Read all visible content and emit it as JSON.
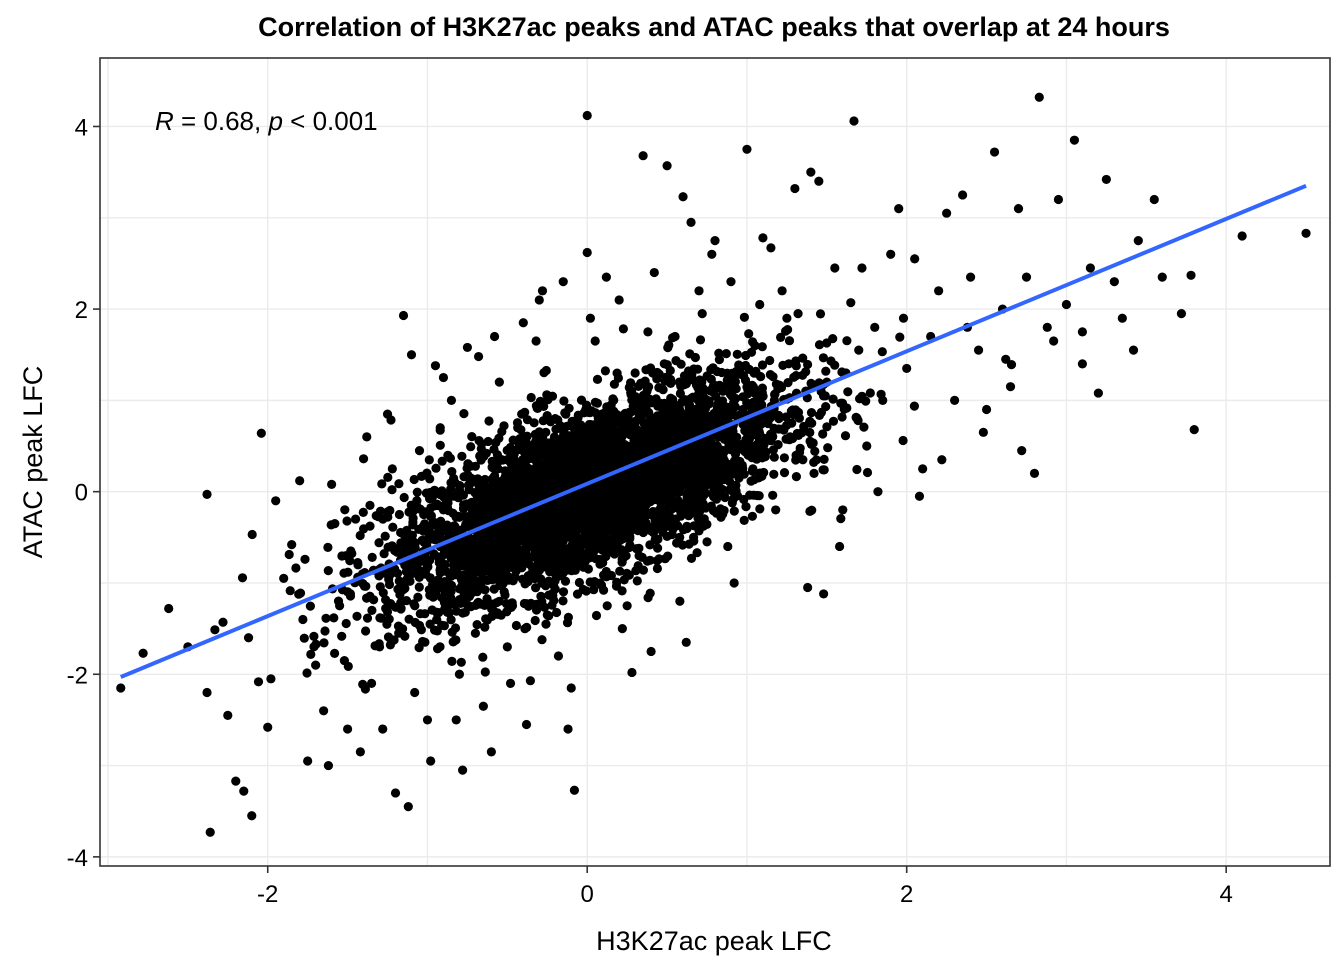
{
  "chart_data": {
    "type": "scatter",
    "title": "Correlation of H3K27ac peaks and ATAC peaks that overlap at 24 hours",
    "xlabel": "H3K27ac peak LFC",
    "ylabel": "ATAC peak LFC",
    "xlim": [
      -3.05,
      4.65
    ],
    "ylim": [
      -4.1,
      4.75
    ],
    "x_ticks": [
      -2,
      0,
      2,
      4
    ],
    "y_ticks": [
      -4,
      -2,
      0,
      2,
      4
    ],
    "x_tick_labels": [
      "-2",
      "0",
      "2",
      "4"
    ],
    "y_tick_labels": [
      "-4",
      "-2",
      "0",
      "2",
      "4"
    ],
    "grid": true,
    "annotation": {
      "r_symbol": "R",
      "r_text": " = 0.68, ",
      "p_symbol": "p",
      "p_text": " < 0.001"
    },
    "series": [
      {
        "type": "scatter",
        "color": "#000000",
        "points": [
          [
            -2.92,
            -2.15
          ],
          [
            -2.78,
            -1.77
          ],
          [
            -2.62,
            -1.28
          ],
          [
            -2.38,
            -0.03
          ],
          [
            -2.38,
            -2.2
          ],
          [
            -2.36,
            -3.73
          ],
          [
            -2.28,
            -1.43
          ],
          [
            -2.2,
            -3.17
          ],
          [
            -2.15,
            -3.28
          ],
          [
            -2.1,
            -3.55
          ],
          [
            -2.04,
            0.64
          ],
          [
            -2.0,
            -2.58
          ],
          [
            -1.95,
            -0.1
          ],
          [
            -1.85,
            -0.58
          ],
          [
            -1.8,
            0.12
          ],
          [
            -1.75,
            -2.95
          ],
          [
            -1.7,
            -1.9
          ],
          [
            -1.62,
            -3.0
          ],
          [
            -1.55,
            -1.25
          ],
          [
            -1.5,
            -2.6
          ],
          [
            -1.45,
            -0.3
          ],
          [
            -1.4,
            0.36
          ],
          [
            -1.35,
            -2.1
          ],
          [
            -1.3,
            -0.85
          ],
          [
            -1.25,
            0.85
          ],
          [
            -1.2,
            -3.3
          ],
          [
            -1.18,
            -1.55
          ],
          [
            -1.15,
            1.93
          ],
          [
            -1.12,
            -3.45
          ],
          [
            -1.05,
            0.45
          ],
          [
            -1.0,
            -2.5
          ],
          [
            -0.95,
            1.38
          ],
          [
            -0.9,
            -0.2
          ],
          [
            -0.85,
            1.0
          ],
          [
            -0.8,
            -2.0
          ],
          [
            -0.78,
            -3.05
          ],
          [
            -0.75,
            1.58
          ],
          [
            -0.7,
            -0.7
          ],
          [
            -0.62,
            0.55
          ],
          [
            -0.6,
            -2.85
          ],
          [
            -0.55,
            1.2
          ],
          [
            -0.5,
            -1.7
          ],
          [
            -0.45,
            0.2
          ],
          [
            -0.4,
            1.85
          ],
          [
            -0.35,
            -0.9
          ],
          [
            -0.3,
            2.1
          ],
          [
            -0.25,
            -1.35
          ],
          [
            -0.2,
            0.8
          ],
          [
            -0.15,
            2.3
          ],
          [
            -0.1,
            -2.15
          ],
          [
            -0.08,
            -3.27
          ],
          [
            -0.05,
            0.35
          ],
          [
            0.0,
            2.62
          ],
          [
            0.0,
            4.12
          ],
          [
            0.05,
            1.65
          ],
          [
            0.1,
            -0.4
          ],
          [
            0.15,
            0.95
          ],
          [
            0.2,
            2.1
          ],
          [
            0.25,
            -1.25
          ],
          [
            0.3,
            1.3
          ],
          [
            0.35,
            3.68
          ],
          [
            0.4,
            -1.75
          ],
          [
            0.45,
            0.5
          ],
          [
            0.5,
            3.57
          ],
          [
            0.55,
            1.7
          ],
          [
            0.6,
            3.23
          ],
          [
            0.65,
            2.95
          ],
          [
            0.7,
            2.2
          ],
          [
            0.75,
            -0.55
          ],
          [
            0.8,
            2.75
          ],
          [
            0.85,
            1.1
          ],
          [
            0.9,
            2.3
          ],
          [
            0.95,
            0.15
          ],
          [
            1.0,
            3.75
          ],
          [
            1.05,
            1.6
          ],
          [
            1.1,
            2.78
          ],
          [
            1.15,
            2.67
          ],
          [
            1.2,
            0.8
          ],
          [
            1.25,
            1.9
          ],
          [
            1.3,
            3.32
          ],
          [
            1.35,
            0.35
          ],
          [
            1.4,
            3.5
          ],
          [
            1.45,
            3.4
          ],
          [
            1.5,
            1.2
          ],
          [
            1.55,
            2.45
          ],
          [
            1.6,
            -0.2
          ],
          [
            1.65,
            2.07
          ],
          [
            1.67,
            4.06
          ],
          [
            1.7,
            1.55
          ],
          [
            1.75,
            0.5
          ],
          [
            1.8,
            1.8
          ],
          [
            1.85,
            1.0
          ],
          [
            1.9,
            2.6
          ],
          [
            1.95,
            3.1
          ],
          [
            2.0,
            1.35
          ],
          [
            2.05,
            2.55
          ],
          [
            2.1,
            0.25
          ],
          [
            2.15,
            1.7
          ],
          [
            2.2,
            2.2
          ],
          [
            2.25,
            3.05
          ],
          [
            2.3,
            1.0
          ],
          [
            2.35,
            3.25
          ],
          [
            2.4,
            2.35
          ],
          [
            2.45,
            1.55
          ],
          [
            2.5,
            0.9
          ],
          [
            2.55,
            3.72
          ],
          [
            2.6,
            2.0
          ],
          [
            2.65,
            1.15
          ],
          [
            2.7,
            3.1
          ],
          [
            2.75,
            2.35
          ],
          [
            2.8,
            0.2
          ],
          [
            2.83,
            4.32
          ],
          [
            2.88,
            1.8
          ],
          [
            2.95,
            3.2
          ],
          [
            3.0,
            2.05
          ],
          [
            3.05,
            3.85
          ],
          [
            3.1,
            1.4
          ],
          [
            3.15,
            2.45
          ],
          [
            3.2,
            1.08
          ],
          [
            3.25,
            3.42
          ],
          [
            3.35,
            1.9
          ],
          [
            3.45,
            2.75
          ],
          [
            3.55,
            3.2
          ],
          [
            3.6,
            2.35
          ],
          [
            3.72,
            1.95
          ],
          [
            3.78,
            2.37
          ],
          [
            3.8,
            0.68
          ],
          [
            4.1,
            2.8
          ],
          [
            4.5,
            2.83
          ],
          [
            -1.6,
            0.08
          ],
          [
            -1.52,
            -1.85
          ],
          [
            -1.48,
            -0.65
          ],
          [
            -1.38,
            0.6
          ],
          [
            -1.3,
            -1.7
          ],
          [
            -1.22,
            0.25
          ],
          [
            -0.98,
            -2.95
          ],
          [
            -0.9,
            1.25
          ],
          [
            -0.65,
            -2.35
          ],
          [
            -0.58,
            1.7
          ],
          [
            -0.38,
            -2.55
          ],
          [
            -0.28,
            2.2
          ],
          [
            -0.12,
            -2.6
          ],
          [
            0.12,
            2.35
          ],
          [
            0.28,
            -1.98
          ],
          [
            0.42,
            2.4
          ],
          [
            0.62,
            -1.65
          ],
          [
            0.78,
            2.6
          ],
          [
            0.92,
            -1.0
          ],
          [
            1.22,
            2.2
          ],
          [
            1.38,
            -1.05
          ],
          [
            1.48,
            -1.12
          ],
          [
            1.58,
            -0.6
          ],
          [
            1.72,
            2.45
          ],
          [
            1.82,
            0.0
          ],
          [
            1.98,
            1.9
          ],
          [
            2.08,
            -0.05
          ],
          [
            2.22,
            0.35
          ],
          [
            2.38,
            1.8
          ],
          [
            2.48,
            0.65
          ],
          [
            2.62,
            1.45
          ],
          [
            2.72,
            0.45
          ],
          [
            2.92,
            1.65
          ],
          [
            3.1,
            1.75
          ],
          [
            3.3,
            2.3
          ],
          [
            3.42,
            1.55
          ],
          [
            -2.5,
            -1.7
          ],
          [
            -2.25,
            -2.45
          ],
          [
            -2.12,
            -1.6
          ],
          [
            -1.98,
            -2.05
          ],
          [
            -1.9,
            -0.95
          ],
          [
            -1.78,
            -1.4
          ],
          [
            -1.65,
            -2.4
          ],
          [
            -1.58,
            -0.35
          ],
          [
            -1.42,
            -2.85
          ],
          [
            -1.36,
            -0.15
          ],
          [
            -1.28,
            -2.6
          ],
          [
            -1.1,
            1.5
          ],
          [
            -1.08,
            -2.2
          ],
          [
            -0.92,
            0.7
          ],
          [
            -0.82,
            -2.5
          ],
          [
            -0.68,
            1.48
          ],
          [
            -0.48,
            -2.1
          ],
          [
            -0.32,
            1.65
          ],
          [
            -0.18,
            -1.8
          ],
          [
            0.02,
            1.9
          ],
          [
            0.22,
            -1.5
          ],
          [
            0.38,
            1.75
          ],
          [
            0.58,
            -1.2
          ],
          [
            0.72,
            1.95
          ],
          [
            0.88,
            -0.6
          ],
          [
            1.08,
            2.05
          ],
          [
            1.18,
            -0.2
          ],
          [
            1.32,
            1.95
          ],
          [
            1.42,
            0.2
          ],
          [
            1.62,
            1.3
          ]
        ]
      },
      {
        "type": "line",
        "name": "",
        "color": "#3366ff",
        "x": [
          -2.92,
          4.5
        ],
        "y": [
          -2.03,
          3.35
        ]
      }
    ],
    "dense_cloud": {
      "mean": [
        0.0,
        0.0
      ],
      "sd": [
        0.62,
        0.62
      ],
      "correlation": 0.68
    }
  }
}
